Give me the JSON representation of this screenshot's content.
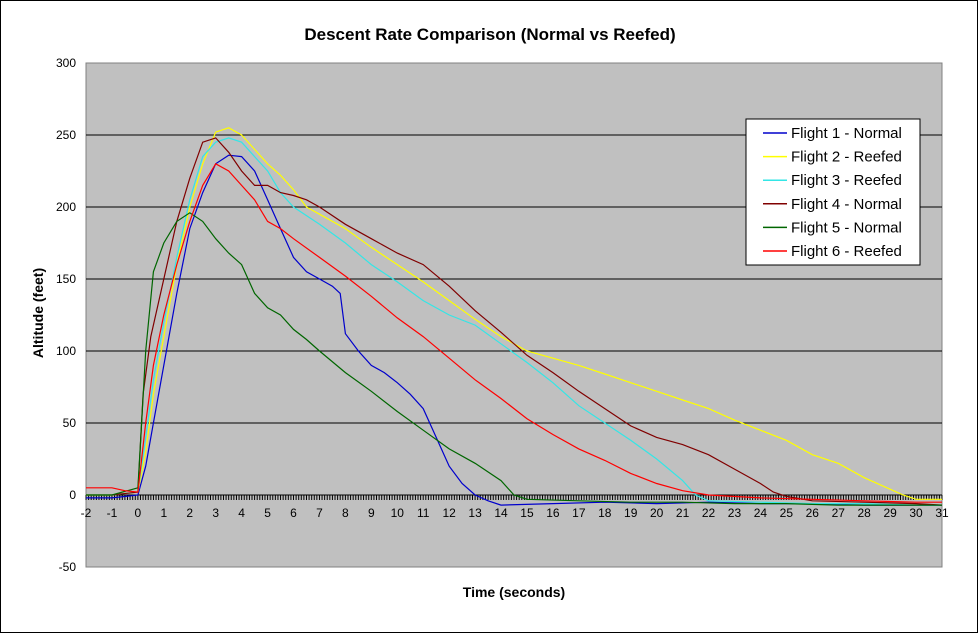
{
  "chart_data": {
    "type": "line",
    "title": "Descent Rate Comparison (Normal vs Reefed)",
    "xlabel": "Time (seconds)",
    "ylabel": "Altitude (feet)",
    "xlim": [
      -2,
      31
    ],
    "ylim": [
      -50,
      300
    ],
    "x_ticks": [
      -2,
      -1,
      0,
      1,
      2,
      3,
      4,
      5,
      6,
      7,
      8,
      9,
      10,
      11,
      12,
      13,
      14,
      15,
      16,
      17,
      18,
      19,
      20,
      21,
      22,
      23,
      24,
      25,
      26,
      27,
      28,
      29,
      30,
      31
    ],
    "y_ticks": [
      -50,
      0,
      50,
      100,
      150,
      200,
      250,
      300
    ],
    "grid": "horizontal",
    "plot_background": "#c0c0c0",
    "legend_position": "top-right",
    "series": [
      {
        "name": "Flight 1 - Normal",
        "color": "#0000cc",
        "points": [
          [
            -2,
            -2
          ],
          [
            -1,
            -2
          ],
          [
            0,
            0
          ],
          [
            0.3,
            20
          ],
          [
            0.6,
            50
          ],
          [
            1,
            90
          ],
          [
            1.5,
            140
          ],
          [
            2,
            185
          ],
          [
            2.5,
            210
          ],
          [
            3,
            230
          ],
          [
            3.5,
            236
          ],
          [
            4,
            235
          ],
          [
            4.5,
            225
          ],
          [
            5,
            205
          ],
          [
            5.5,
            185
          ],
          [
            6,
            165
          ],
          [
            6.5,
            155
          ],
          [
            7,
            150
          ],
          [
            7.5,
            145
          ],
          [
            7.8,
            140
          ],
          [
            8,
            112
          ],
          [
            8.5,
            100
          ],
          [
            9,
            90
          ],
          [
            9.5,
            85
          ],
          [
            10,
            78
          ],
          [
            10.5,
            70
          ],
          [
            11,
            60
          ],
          [
            11.5,
            40
          ],
          [
            12,
            20
          ],
          [
            12.5,
            8
          ],
          [
            13,
            0
          ],
          [
            13.5,
            -4
          ],
          [
            14,
            -7
          ],
          [
            16,
            -6
          ],
          [
            18,
            -5
          ],
          [
            20,
            -6
          ],
          [
            22,
            -5
          ],
          [
            24,
            -6
          ],
          [
            26,
            -6
          ],
          [
            28,
            -7
          ],
          [
            30,
            -7
          ],
          [
            31,
            -7
          ]
        ]
      },
      {
        "name": "Flight 2 - Reefed",
        "color": "#ffff00",
        "points": [
          [
            -2,
            0
          ],
          [
            -1,
            0
          ],
          [
            0,
            2
          ],
          [
            0.3,
            30
          ],
          [
            0.6,
            70
          ],
          [
            1,
            110
          ],
          [
            1.5,
            160
          ],
          [
            2,
            200
          ],
          [
            2.5,
            230
          ],
          [
            3,
            252
          ],
          [
            3.5,
            255
          ],
          [
            4,
            250
          ],
          [
            4.5,
            240
          ],
          [
            5,
            230
          ],
          [
            5.5,
            222
          ],
          [
            6,
            212
          ],
          [
            6.5,
            200
          ],
          [
            7,
            195
          ],
          [
            8,
            185
          ],
          [
            9,
            172
          ],
          [
            10,
            160
          ],
          [
            11,
            148
          ],
          [
            12,
            135
          ],
          [
            13,
            122
          ],
          [
            14,
            110
          ],
          [
            15,
            100
          ],
          [
            16,
            95
          ],
          [
            17,
            90
          ],
          [
            18,
            84
          ],
          [
            19,
            78
          ],
          [
            20,
            72
          ],
          [
            21,
            66
          ],
          [
            22,
            60
          ],
          [
            23,
            52
          ],
          [
            24,
            45
          ],
          [
            25,
            38
          ],
          [
            26,
            28
          ],
          [
            27,
            22
          ],
          [
            28,
            12
          ],
          [
            29,
            4
          ],
          [
            29.5,
            0
          ],
          [
            30,
            -3
          ],
          [
            31,
            -3
          ]
        ]
      },
      {
        "name": "Flight 3 - Reefed",
        "color": "#33e6e6",
        "points": [
          [
            -2,
            0
          ],
          [
            -1,
            0
          ],
          [
            0,
            2
          ],
          [
            0.3,
            40
          ],
          [
            0.6,
            80
          ],
          [
            1,
            120
          ],
          [
            1.5,
            165
          ],
          [
            2,
            205
          ],
          [
            2.5,
            235
          ],
          [
            3,
            245
          ],
          [
            3.5,
            248
          ],
          [
            4,
            245
          ],
          [
            4.5,
            235
          ],
          [
            5,
            225
          ],
          [
            5.5,
            210
          ],
          [
            6,
            200
          ],
          [
            7,
            188
          ],
          [
            8,
            175
          ],
          [
            9,
            160
          ],
          [
            10,
            148
          ],
          [
            11,
            135
          ],
          [
            12,
            125
          ],
          [
            13,
            118
          ],
          [
            14,
            105
          ],
          [
            15,
            92
          ],
          [
            16,
            78
          ],
          [
            17,
            62
          ],
          [
            18,
            50
          ],
          [
            19,
            38
          ],
          [
            20,
            25
          ],
          [
            21,
            10
          ],
          [
            21.5,
            0
          ],
          [
            22,
            -4
          ],
          [
            24,
            -5
          ],
          [
            26,
            -6
          ],
          [
            28,
            -6
          ],
          [
            30,
            -7
          ],
          [
            31,
            -7
          ]
        ]
      },
      {
        "name": "Flight 4 - Normal",
        "color": "#800000",
        "points": [
          [
            -2,
            0
          ],
          [
            -1,
            0
          ],
          [
            0,
            2
          ],
          [
            0.2,
            70
          ],
          [
            0.5,
            110
          ],
          [
            1,
            150
          ],
          [
            1.5,
            190
          ],
          [
            2,
            220
          ],
          [
            2.5,
            245
          ],
          [
            3,
            248
          ],
          [
            3.5,
            238
          ],
          [
            4,
            225
          ],
          [
            4.5,
            215
          ],
          [
            5,
            215
          ],
          [
            5.5,
            210
          ],
          [
            6,
            208
          ],
          [
            6.5,
            205
          ],
          [
            7,
            200
          ],
          [
            8,
            188
          ],
          [
            9,
            178
          ],
          [
            10,
            168
          ],
          [
            11,
            160
          ],
          [
            12,
            145
          ],
          [
            13,
            128
          ],
          [
            14,
            113
          ],
          [
            15,
            97
          ],
          [
            16,
            85
          ],
          [
            17,
            72
          ],
          [
            18,
            60
          ],
          [
            19,
            48
          ],
          [
            20,
            40
          ],
          [
            21,
            35
          ],
          [
            22,
            28
          ],
          [
            23,
            18
          ],
          [
            24,
            8
          ],
          [
            24.5,
            2
          ],
          [
            25,
            -1
          ],
          [
            26,
            -4
          ],
          [
            28,
            -5
          ],
          [
            30,
            -6
          ],
          [
            31,
            -7
          ]
        ]
      },
      {
        "name": "Flight 5 - Normal",
        "color": "#006600",
        "points": [
          [
            -2,
            0
          ],
          [
            -1,
            0
          ],
          [
            0,
            5
          ],
          [
            0.3,
            100
          ],
          [
            0.6,
            155
          ],
          [
            1,
            175
          ],
          [
            1.5,
            190
          ],
          [
            2,
            196
          ],
          [
            2.5,
            190
          ],
          [
            3,
            178
          ],
          [
            3.5,
            168
          ],
          [
            4,
            160
          ],
          [
            4.5,
            140
          ],
          [
            5,
            130
          ],
          [
            5.5,
            125
          ],
          [
            6,
            115
          ],
          [
            6.5,
            108
          ],
          [
            7,
            100
          ],
          [
            8,
            85
          ],
          [
            9,
            72
          ],
          [
            10,
            58
          ],
          [
            11,
            45
          ],
          [
            12,
            32
          ],
          [
            13,
            22
          ],
          [
            14,
            10
          ],
          [
            14.5,
            0
          ],
          [
            15,
            -3
          ],
          [
            17,
            -4
          ],
          [
            19,
            -5
          ],
          [
            21,
            -5
          ],
          [
            23,
            -6
          ],
          [
            25,
            -6
          ],
          [
            27,
            -7
          ],
          [
            29,
            -7
          ],
          [
            31,
            -7
          ]
        ]
      },
      {
        "name": "Flight 6 - Reefed",
        "color": "#ff0000",
        "points": [
          [
            -2,
            5
          ],
          [
            -1,
            5
          ],
          [
            -0.5,
            3
          ],
          [
            0,
            2
          ],
          [
            0.3,
            50
          ],
          [
            0.6,
            90
          ],
          [
            1,
            125
          ],
          [
            1.5,
            160
          ],
          [
            2,
            190
          ],
          [
            2.5,
            215
          ],
          [
            3,
            230
          ],
          [
            3.5,
            225
          ],
          [
            4,
            215
          ],
          [
            4.5,
            205
          ],
          [
            5,
            190
          ],
          [
            5.5,
            185
          ],
          [
            6,
            178
          ],
          [
            7,
            165
          ],
          [
            8,
            152
          ],
          [
            9,
            138
          ],
          [
            10,
            123
          ],
          [
            11,
            110
          ],
          [
            12,
            95
          ],
          [
            13,
            80
          ],
          [
            14,
            67
          ],
          [
            15,
            53
          ],
          [
            16,
            42
          ],
          [
            17,
            32
          ],
          [
            18,
            24
          ],
          [
            19,
            15
          ],
          [
            20,
            8
          ],
          [
            21,
            3
          ],
          [
            22,
            0
          ],
          [
            24,
            -2
          ],
          [
            26,
            -3
          ],
          [
            28,
            -4
          ],
          [
            30,
            -5
          ],
          [
            31,
            -5
          ]
        ]
      }
    ]
  }
}
